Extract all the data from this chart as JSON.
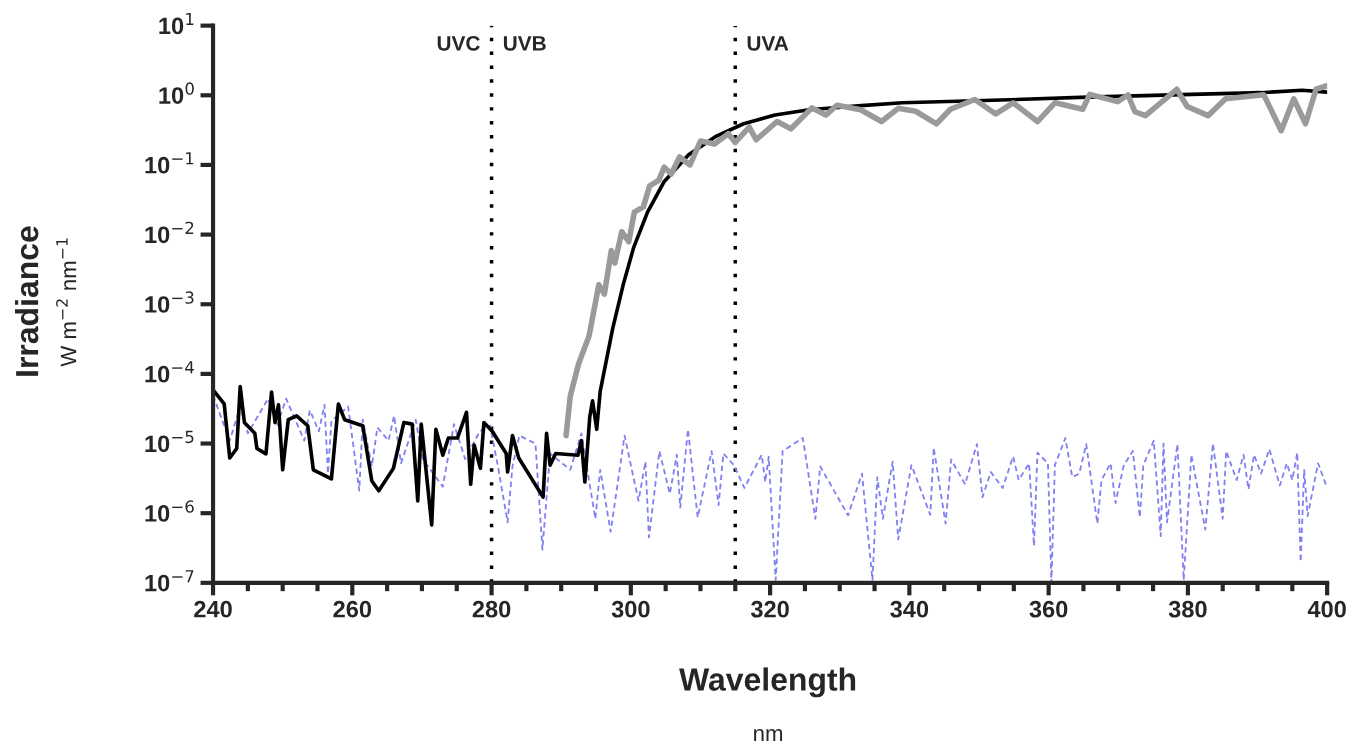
{
  "chart_data": {
    "type": "line",
    "xlabel": "Wavelength\nnm",
    "ylabel": "Irradiance\nW m$^{−2}$ nm$^{−1}$",
    "log": "y",
    "grid": false,
    "legend": false,
    "marker": "none",
    "xlim": [
      240,
      400
    ],
    "ylim": [
      1e-07,
      10
    ],
    "xticks": [
      240,
      {
        "value": 245,
        "label": null
      },
      {
        "value": 250,
        "label": null
      },
      {
        "value": 255,
        "label": null
      },
      260,
      {
        "value": 265,
        "label": null
      },
      {
        "value": 270,
        "label": null
      },
      {
        "value": 275,
        "label": null
      },
      280,
      {
        "value": 285,
        "label": null
      },
      {
        "value": 290,
        "label": null
      },
      {
        "value": 295,
        "label": null
      },
      300,
      {
        "value": 305,
        "label": null
      },
      {
        "value": 310,
        "label": null
      },
      {
        "value": 315,
        "label": null
      },
      320,
      {
        "value": 325,
        "label": null
      },
      {
        "value": 330,
        "label": null
      },
      {
        "value": 335,
        "label": null
      },
      340,
      {
        "value": 345,
        "label": null
      },
      {
        "value": 350,
        "label": null
      },
      {
        "value": 355,
        "label": null
      },
      360,
      {
        "value": 365,
        "label": null
      },
      {
        "value": 370,
        "label": null
      },
      {
        "value": 375,
        "label": null
      },
      380,
      {
        "value": 385,
        "label": null
      },
      {
        "value": 390,
        "label": null
      },
      {
        "value": 395,
        "label": null
      },
      400
    ],
    "yticks": [
      {
        "value": 1e-07,
        "label": "10$^{−7}$"
      },
      {
        "value": 1e-06,
        "label": "10$^{−6}$"
      },
      {
        "value": 1e-05,
        "label": "10$^{−5}$"
      },
      {
        "value": 0.0001,
        "label": "10$^{−4}$"
      },
      {
        "value": 0.001,
        "label": "10$^{−3}$"
      },
      {
        "value": 0.01,
        "label": "10$^{−2}$"
      },
      {
        "value": 0.1,
        "label": "10$^{−1}$"
      },
      {
        "value": 1,
        "label": "10$^{0}$"
      },
      {
        "value": 10,
        "label": "10$^{1}$"
      }
    ],
    "ref_lines": [
      {
        "axis": "x",
        "value": 280,
        "color": "#000000",
        "line_style": "dotted",
        "label": "UVB"
      },
      {
        "axis": "x",
        "value": 315,
        "color": "#000000",
        "line_style": "dotted",
        "label": "UVA"
      }
    ],
    "annotations": [
      "UVC"
    ],
    "series": [
      {
        "color": "#9a9a9c",
        "line_style": "solid",
        "x": [
          290.7,
          291.3,
          292.5,
          294,
          295.4,
          296.2,
          297.2,
          297.7,
          298.7,
          299.7,
          300.5,
          301.8,
          302.7,
          304,
          304.8,
          305.8,
          307,
          308.5,
          310,
          312,
          314,
          315,
          317,
          318,
          321,
          323,
          326,
          328,
          329.6,
          333,
          336,
          338.4,
          340.9,
          343.9,
          345.9,
          349.4,
          352.4,
          354.9,
          358.4,
          360.9,
          364.9,
          365.9,
          369.9,
          371.4,
          372.4,
          373.9,
          378.4,
          379.9,
          382.9,
          385.4,
          390.9,
          393.4,
          395.2,
          396.9,
          398.4,
          400
        ],
        "values": [
          1.3e-05,
          4.8e-05,
          0.00014,
          0.00035,
          0.0019,
          0.0014,
          0.0059,
          0.0039,
          0.011,
          0.0079,
          0.021,
          0.025,
          0.05,
          0.06,
          0.093,
          0.074,
          0.13,
          0.1,
          0.22,
          0.2,
          0.28,
          0.21,
          0.35,
          0.23,
          0.42,
          0.33,
          0.66,
          0.52,
          0.72,
          0.62,
          0.42,
          0.65,
          0.59,
          0.39,
          0.63,
          0.87,
          0.54,
          0.78,
          0.42,
          0.78,
          0.63,
          1.03,
          0.81,
          1.01,
          0.58,
          0.51,
          1.22,
          0.69,
          0.51,
          0.89,
          1.02,
          0.31,
          0.89,
          0.39,
          1.22,
          1.37
        ]
      },
      {
        "color": "#000000",
        "line_style": "solid",
        "x": [
          240,
          241.6,
          242.4,
          243.4,
          243.9,
          244.5,
          246,
          246.3,
          247.6,
          248.4,
          248.9,
          249.4,
          250,
          250.8,
          252,
          253.6,
          254.4,
          257,
          258,
          258.9,
          261.5,
          262.8,
          263.8,
          265.9,
          267.4,
          268.6,
          269.4,
          269.9,
          271.4,
          272,
          273,
          273.8,
          275.1,
          276.4,
          277,
          277.5,
          278.4,
          278.9,
          280.1,
          282.1,
          282.3,
          283,
          283.9,
          287.4,
          287.9,
          288.4,
          289.2,
          292.4,
          292.9,
          293.4,
          294.1,
          294.5,
          295.1,
          295.6,
          297.4,
          298.9,
          300.4,
          302.4,
          304.8,
          308.3,
          312.3,
          316.2,
          320.7,
          325.6,
          333.1,
          339,
          350.7,
          365.6,
          380.5,
          390.5,
          396.4,
          400
        ],
        "values": [
          5.9e-05,
          3.7e-05,
          6.2e-06,
          8.5e-06,
          6.6e-05,
          2e-05,
          1.4e-05,
          8.5e-06,
          7.1e-06,
          5.5e-05,
          2e-05,
          3.6e-05,
          4.2e-06,
          2.2e-05,
          2.5e-05,
          1.8e-05,
          4.2e-06,
          3.1e-06,
          3.7e-05,
          2.2e-05,
          1.8e-05,
          2.9e-06,
          2.1e-06,
          4.4e-06,
          2e-05,
          1.9e-05,
          1.5e-06,
          1.9e-05,
          6.8e-07,
          1.6e-05,
          6.8e-06,
          1.2e-05,
          1.2e-05,
          2.8e-05,
          2.6e-06,
          9.5e-06,
          4.4e-06,
          2e-05,
          1.5e-05,
          7.2e-06,
          3.9e-06,
          1.3e-05,
          6.2e-06,
          1.7e-06,
          1.4e-05,
          4.9e-06,
          7.2e-06,
          6.8e-06,
          1.1e-05,
          2.8e-06,
          2.4e-05,
          4.1e-05,
          1.6e-05,
          5.6e-05,
          0.00045,
          0.0019,
          0.0065,
          0.021,
          0.058,
          0.14,
          0.26,
          0.39,
          0.52,
          0.62,
          0.71,
          0.78,
          0.84,
          0.94,
          1.03,
          1.09,
          1.18,
          1.11
        ]
      },
      {
        "color": "#8080f0",
        "line_style": "dashed",
        "x": [
          240,
          242.4,
          243.9,
          245,
          247.9,
          249.2,
          250.5,
          253.1,
          253.9,
          255.2,
          256,
          256.5,
          257,
          259.4,
          261,
          261.5,
          262.8,
          263.6,
          265.2,
          266,
          267,
          269.1,
          270.1,
          273,
          274.6,
          276.2,
          278.3,
          279.8,
          281,
          282.3,
          283,
          284,
          286.3,
          287.3,
          288.4,
          291.3,
          292.9,
          294.9,
          295.6,
          297.1,
          299.1,
          301.1,
          302.1,
          302.6,
          304.1,
          305.6,
          306.6,
          307.1,
          308.2,
          309.6,
          311.6,
          312.6,
          313.3,
          314.8,
          316.3,
          318.8,
          319.3,
          319.8,
          320.8,
          321.8,
          324.7,
          326.5,
          327.2,
          331.2,
          333.2,
          334.7,
          335.4,
          336.2,
          337.6,
          338.4,
          340.3,
          343,
          343.5,
          345.2,
          346,
          348,
          349.7,
          350.5,
          351.7,
          353.4,
          354.9,
          355.7,
          357.2,
          357.9,
          358.4,
          359.9,
          360.4,
          360.9,
          362.4,
          363.4,
          364.4,
          365.4,
          367,
          367.6,
          368.9,
          369.6,
          370.8,
          372.1,
          373.1,
          373.6,
          375.1,
          376.1,
          376.5,
          377,
          378.5,
          379.4,
          380.5,
          382.5,
          383.6,
          385,
          385.5,
          387,
          388,
          388.7,
          389.5,
          390.5,
          391.7,
          393.2,
          394.2,
          395,
          395.7,
          396.2,
          396.7,
          397.2,
          398.7,
          400
        ],
        "values": [
          4.9e-05,
          1.1e-05,
          3.4e-05,
          1.4e-05,
          4.4e-05,
          1.8e-05,
          4.4e-05,
          1.1e-05,
          3e-05,
          1.5e-05,
          3.6e-05,
          3.7e-06,
          2.1e-05,
          3.4e-05,
          2.1e-06,
          2.2e-05,
          4.7e-06,
          1.7e-05,
          1.1e-05,
          2.5e-05,
          5.2e-06,
          2.2e-05,
          6e-06,
          2.4e-06,
          1.9e-05,
          6e-06,
          1.5e-05,
          1.8e-05,
          4.2e-06,
          7.4e-07,
          4.7e-06,
          1.3e-05,
          1e-05,
          3e-07,
          7.2e-06,
          4.2e-06,
          1.4e-05,
          8.3e-07,
          4.2e-06,
          5.4e-07,
          1.3e-05,
          1.5e-06,
          5.5e-06,
          4.5e-07,
          7.8e-06,
          1.9e-06,
          6.9e-06,
          1.2e-06,
          1.6e-05,
          8.7e-07,
          7.8e-06,
          1.3e-06,
          7.2e-06,
          4.9e-06,
          2.3e-06,
          6.9e-06,
          2.8e-06,
          6.5e-06,
          1.1e-07,
          7.8e-06,
          1.2e-05,
          8.3e-07,
          4.7e-06,
          9.3e-07,
          3.7e-06,
          1.1e-07,
          3.3e-06,
          8.3e-07,
          5.5e-06,
          4.2e-07,
          4.9e-06,
          9.5e-07,
          8.7e-06,
          7.1e-07,
          5.9e-06,
          2.6e-06,
          9.8e-06,
          1.7e-06,
          3.9e-06,
          2.3e-06,
          6.5e-06,
          3e-06,
          5.2e-06,
          3.4e-07,
          7.4e-06,
          5.2e-06,
          1e-07,
          4.9e-06,
          1.2e-05,
          3.3e-06,
          3.7e-06,
          9.8e-06,
          7.1e-07,
          3e-06,
          5.2e-06,
          1.4e-06,
          4.9e-06,
          7.8e-06,
          8.7e-07,
          4.9e-06,
          1.1e-05,
          4.7e-07,
          1e-05,
          7.4e-07,
          9.8e-06,
          1.1e-07,
          6.9e-06,
          5.8e-07,
          1e-05,
          8.3e-07,
          7.8e-06,
          3e-06,
          6.9e-06,
          2.2e-06,
          6.9e-06,
          3.7e-06,
          8.3e-06,
          2.5e-06,
          5.2e-06,
          3e-06,
          7.4e-06,
          2e-07,
          4.2e-06,
          9.1e-07,
          5.2e-06,
          2.3e-06
        ]
      }
    ]
  }
}
